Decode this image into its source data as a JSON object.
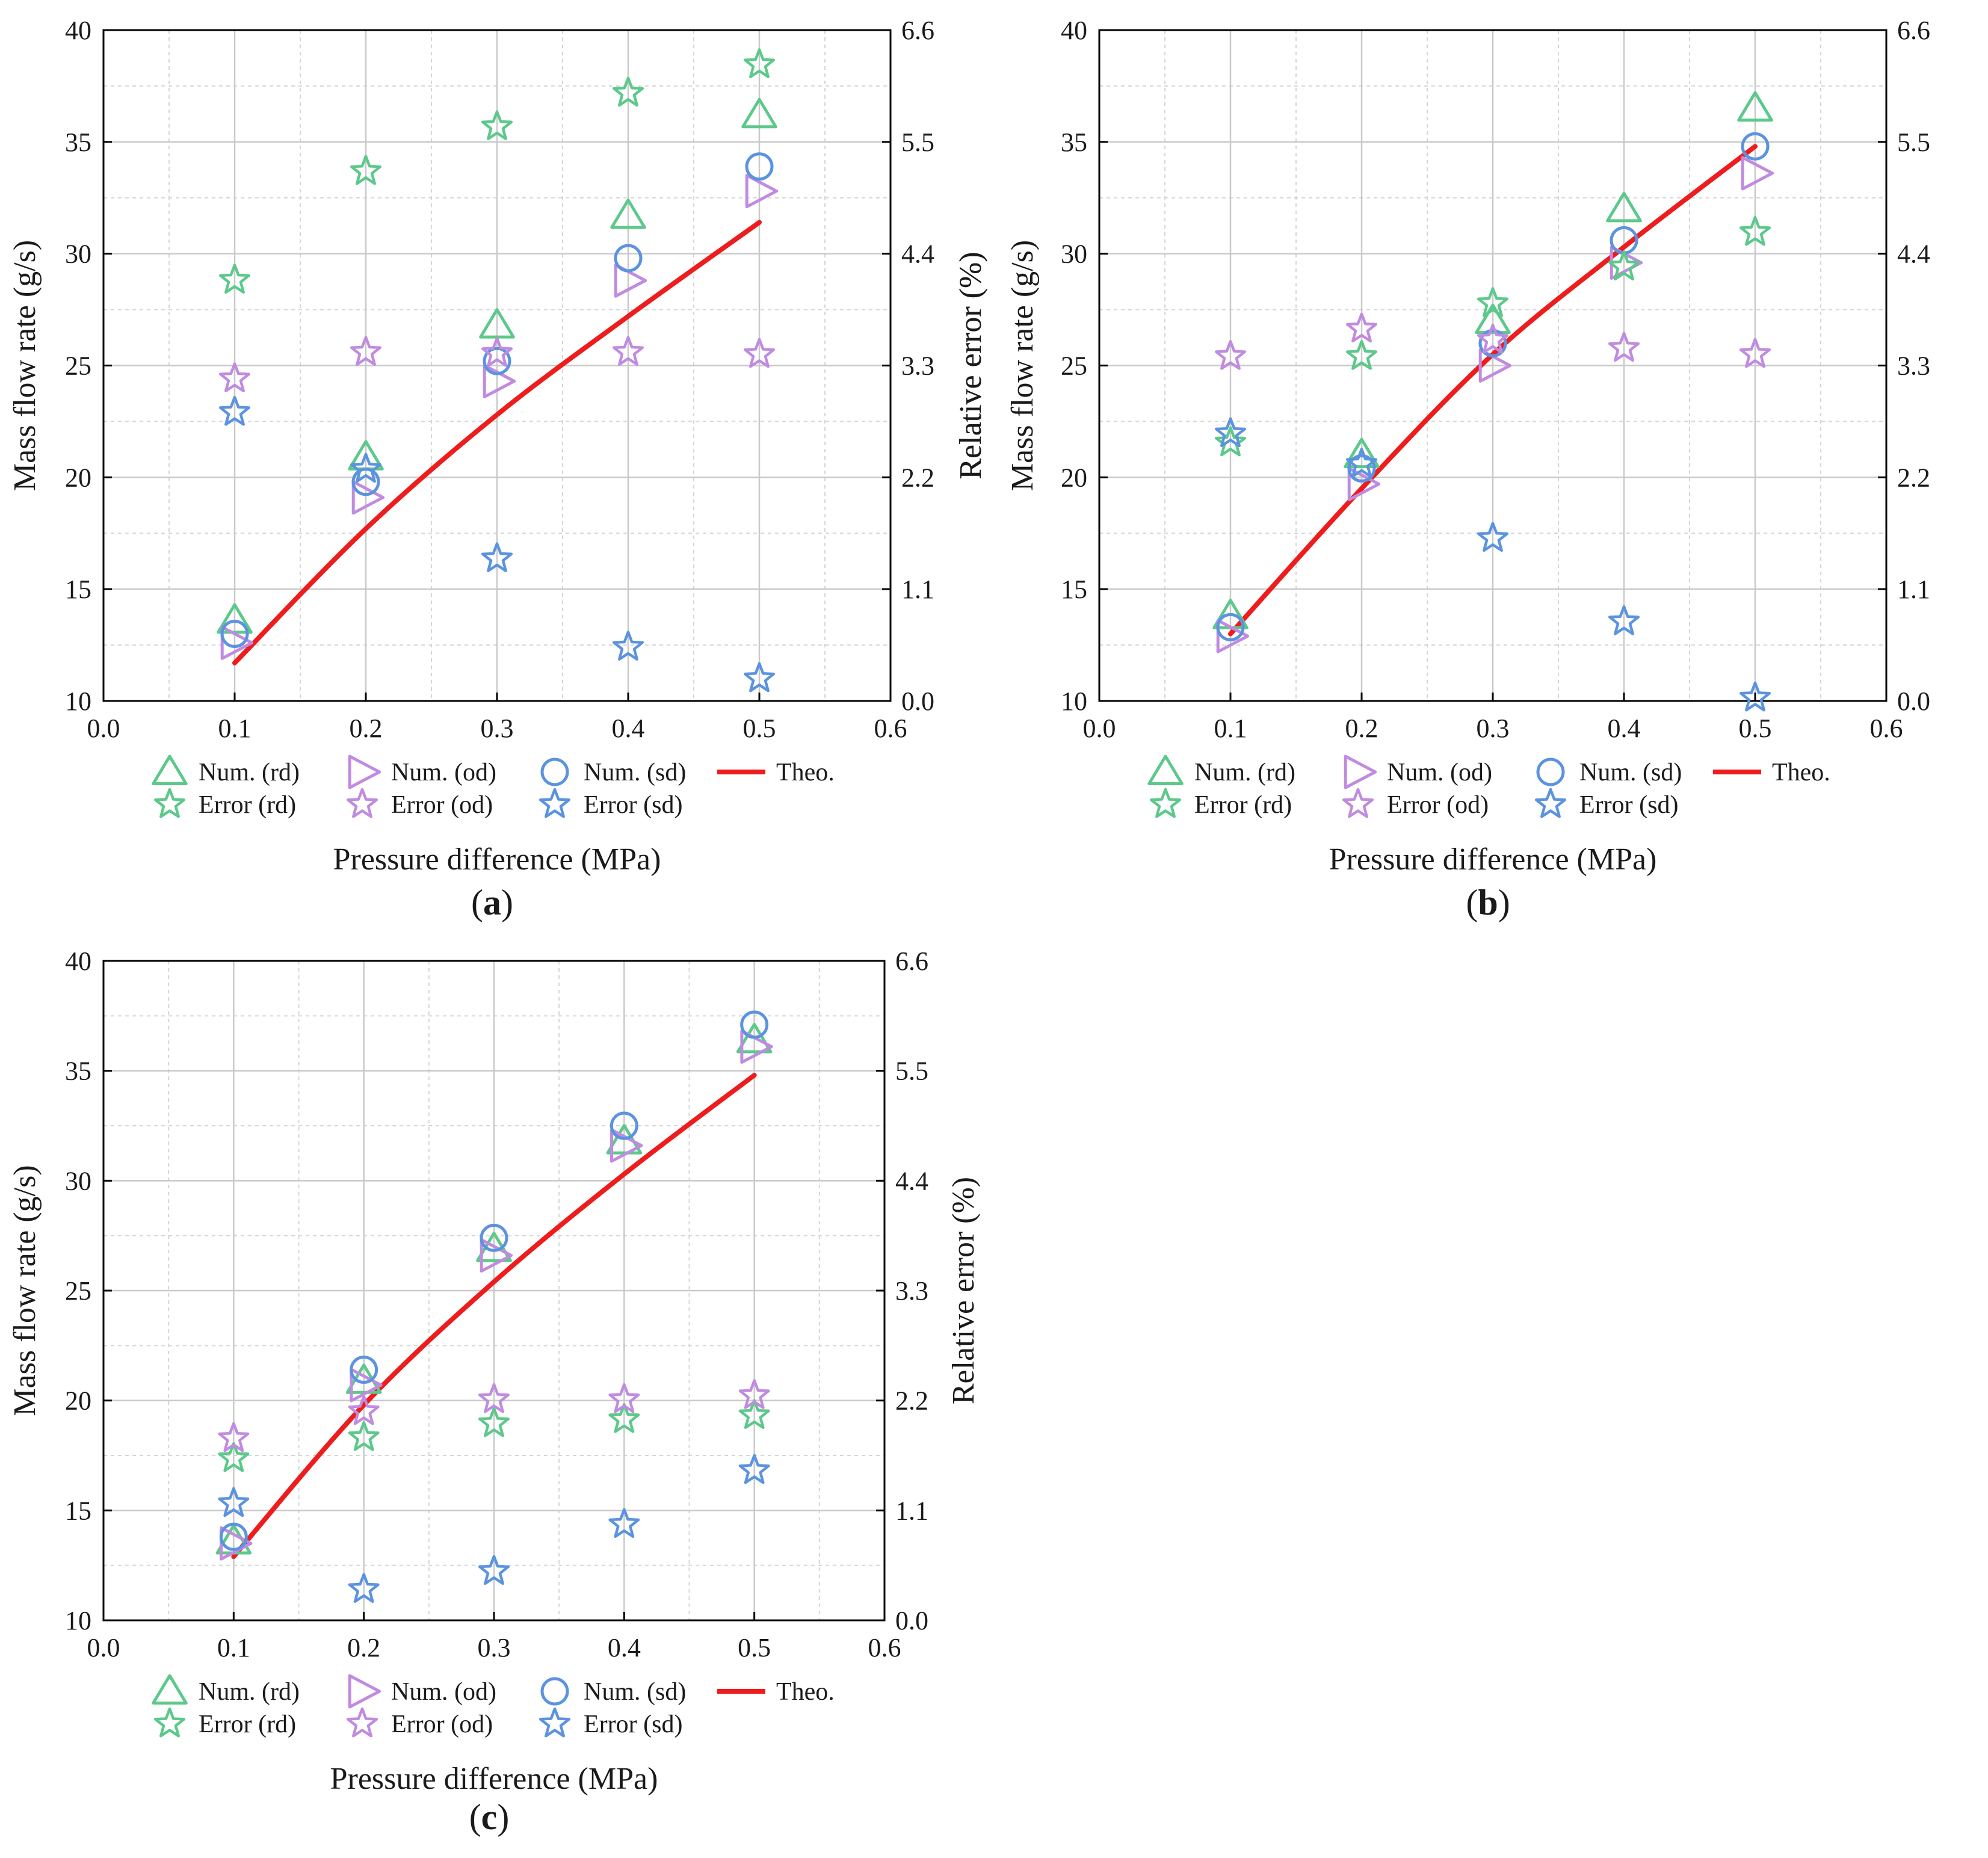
{
  "figure": {
    "colors": {
      "rd": "#5cc98a",
      "od": "#c08be0",
      "sd": "#5b93e0",
      "theo": "#ee1c1c",
      "grid_major": "#c9c9c9",
      "grid_minor": "#d6d6d6",
      "axis": "#000000"
    }
  },
  "chart_data": [
    {
      "id": "a",
      "type": "scatter",
      "panel_label": "a",
      "xlabel": "Pressure difference (MPa)",
      "ylabel": "Mass flow rate (g/s)",
      "y2label": "Relative error (%)",
      "xlim": [
        0.0,
        0.6
      ],
      "ylim": [
        10,
        40
      ],
      "y2lim": [
        0.0,
        6.6
      ],
      "xticks": [
        "0.0",
        "0.1",
        "0.2",
        "0.3",
        "0.4",
        "0.5",
        "0.6"
      ],
      "yticks": [
        "10",
        "15",
        "20",
        "25",
        "30",
        "35",
        "40"
      ],
      "y2ticks": [
        "0.0",
        "1.1",
        "2.2",
        "3.3",
        "4.4",
        "5.5",
        "6.6"
      ],
      "x": [
        0.1,
        0.2,
        0.3,
        0.4,
        0.5
      ],
      "series": [
        {
          "name": "Num. (rd)",
          "key": "rd",
          "marker": "triangle",
          "axis": "left",
          "values": [
            13.6,
            20.9,
            26.8,
            31.7,
            36.2
          ]
        },
        {
          "name": "Num. (od)",
          "key": "od",
          "marker": "right-triangle",
          "axis": "left",
          "values": [
            12.6,
            19.1,
            24.3,
            28.8,
            32.8
          ]
        },
        {
          "name": "Num. (sd)",
          "key": "sd",
          "marker": "circle",
          "axis": "left",
          "values": [
            13.0,
            19.8,
            25.2,
            29.8,
            33.9
          ]
        },
        {
          "name": "Theo.",
          "key": "theo",
          "marker": "line",
          "axis": "left",
          "x": [
            0.1,
            0.2,
            0.3,
            0.4,
            0.5
          ],
          "values": [
            11.7,
            17.7,
            22.8,
            27.2,
            31.4
          ]
        },
        {
          "name": "Error (rd)",
          "key": "rd",
          "marker": "star",
          "axis": "right",
          "values": [
            4.14,
            5.21,
            5.65,
            5.98,
            6.26
          ]
        },
        {
          "name": "Error (od)",
          "key": "od",
          "marker": "star",
          "axis": "right",
          "values": [
            3.17,
            3.43,
            3.42,
            3.43,
            3.41
          ]
        },
        {
          "name": "Error (sd)",
          "key": "sd",
          "marker": "star",
          "axis": "right",
          "values": [
            2.84,
            2.28,
            1.4,
            0.53,
            0.22
          ]
        }
      ]
    },
    {
      "id": "b",
      "type": "scatter",
      "panel_label": "b",
      "xlabel": "Pressure difference (MPa)",
      "ylabel": "Mass flow rate (g/s)",
      "y2label": "Relative error (%)",
      "xlim": [
        0.0,
        0.6
      ],
      "ylim": [
        10,
        40
      ],
      "y2lim": [
        0.0,
        6.6
      ],
      "xticks": [
        "0.0",
        "0.1",
        "0.2",
        "0.3",
        "0.4",
        "0.5",
        "0.6"
      ],
      "yticks": [
        "10",
        "15",
        "20",
        "25",
        "30",
        "35",
        "40"
      ],
      "y2ticks": [
        "0.0",
        "1.1",
        "2.2",
        "3.3",
        "4.4",
        "5.5",
        "6.6"
      ],
      "x": [
        0.1,
        0.2,
        0.3,
        0.4,
        0.5
      ],
      "series": [
        {
          "name": "Num. (rd)",
          "key": "rd",
          "marker": "triangle",
          "axis": "left",
          "values": [
            13.8,
            21.0,
            27.0,
            32.0,
            36.5
          ]
        },
        {
          "name": "Num. (od)",
          "key": "od",
          "marker": "right-triangle",
          "axis": "left",
          "values": [
            12.9,
            19.7,
            25.0,
            29.6,
            33.6
          ]
        },
        {
          "name": "Num. (sd)",
          "key": "sd",
          "marker": "circle",
          "axis": "left",
          "values": [
            13.3,
            20.4,
            26.0,
            30.6,
            34.8
          ]
        },
        {
          "name": "Theo.",
          "key": "theo",
          "marker": "line",
          "axis": "left",
          "x": [
            0.1,
            0.2,
            0.3,
            0.4,
            0.5
          ],
          "values": [
            13.0,
            19.5,
            25.5,
            30.3,
            34.8
          ]
        },
        {
          "name": "Error (rd)",
          "key": "rd",
          "marker": "star",
          "axis": "right",
          "values": [
            2.54,
            3.39,
            3.91,
            4.27,
            4.61
          ]
        },
        {
          "name": "Error (od)",
          "key": "od",
          "marker": "star",
          "axis": "right",
          "values": [
            3.39,
            3.66,
            3.55,
            3.47,
            3.41
          ]
        },
        {
          "name": "Error (sd)",
          "key": "sd",
          "marker": "star",
          "axis": "right",
          "values": [
            2.63,
            2.33,
            1.6,
            0.78,
            0.03
          ]
        }
      ]
    },
    {
      "id": "c",
      "type": "scatter",
      "panel_label": "c",
      "xlabel": "Pressure difference (MPa)",
      "ylabel": "Mass flow rate (g/s)",
      "y2label": "Relative error (%)",
      "xlim": [
        0.0,
        0.6
      ],
      "ylim": [
        10,
        40
      ],
      "y2lim": [
        0.0,
        6.6
      ],
      "xticks": [
        "0.0",
        "0.1",
        "0.2",
        "0.3",
        "0.4",
        "0.5",
        "0.6"
      ],
      "yticks": [
        "10",
        "15",
        "20",
        "25",
        "30",
        "35",
        "40"
      ],
      "y2ticks": [
        "0.0",
        "1.1",
        "2.2",
        "3.3",
        "4.4",
        "5.5",
        "6.6"
      ],
      "x": [
        0.1,
        0.2,
        0.3,
        0.4,
        0.5
      ],
      "series": [
        {
          "name": "Num. (rd)",
          "key": "rd",
          "marker": "triangle",
          "axis": "left",
          "values": [
            13.6,
            20.9,
            26.9,
            31.8,
            36.4
          ]
        },
        {
          "name": "Num. (od)",
          "key": "od",
          "marker": "right-triangle",
          "axis": "left",
          "values": [
            13.5,
            20.7,
            26.6,
            31.6,
            36.1
          ]
        },
        {
          "name": "Num. (sd)",
          "key": "sd",
          "marker": "circle",
          "axis": "left",
          "values": [
            13.8,
            21.4,
            27.4,
            32.5,
            37.1
          ]
        },
        {
          "name": "Theo.",
          "key": "theo",
          "marker": "line",
          "axis": "left",
          "x": [
            0.1,
            0.2,
            0.3,
            0.4,
            0.5
          ],
          "values": [
            12.9,
            19.8,
            25.4,
            30.3,
            34.8
          ]
        },
        {
          "name": "Error (rd)",
          "key": "rd",
          "marker": "star",
          "axis": "right",
          "values": [
            1.62,
            1.83,
            1.97,
            2.01,
            2.05
          ]
        },
        {
          "name": "Error (od)",
          "key": "od",
          "marker": "star",
          "axis": "right",
          "values": [
            1.82,
            2.09,
            2.21,
            2.21,
            2.25
          ]
        },
        {
          "name": "Error (sd)",
          "key": "sd",
          "marker": "star",
          "axis": "right",
          "values": [
            1.17,
            0.31,
            0.49,
            0.96,
            1.5
          ]
        }
      ]
    }
  ]
}
